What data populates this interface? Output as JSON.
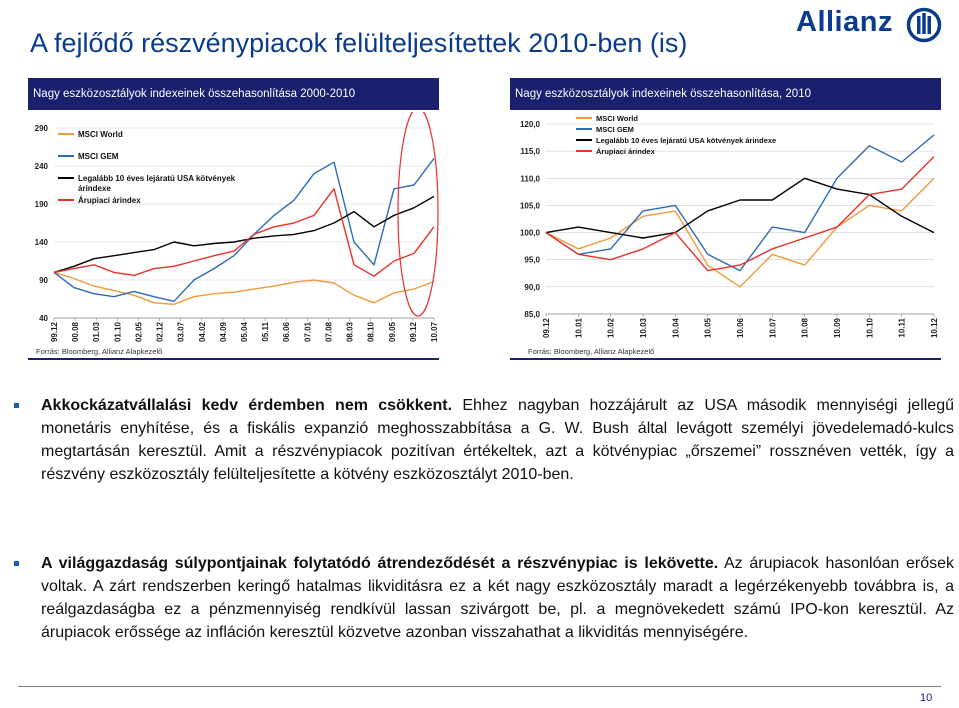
{
  "slide": {
    "title": "A fejlődő részvénypiacok felülteljesítettek 2010-ben (is)",
    "logo_text": "Allianz",
    "page_number": "10"
  },
  "colors": {
    "navy": "#1a1f6e",
    "title_blue": "#0b3b8c",
    "red": "#e8312a",
    "orange": "#f29a3a",
    "blue": "#2e6bb5",
    "black": "#000000"
  },
  "chart_data": [
    {
      "type": "line",
      "panel_title": "Nagy eszközosztályok indexeinek összehasonlítása 2000-2010",
      "source": "Forrás: Bloomberg, Allianz Alapkezelő",
      "y_ticks": [
        "40",
        "90",
        "140",
        "190",
        "240",
        "290"
      ],
      "ylim": [
        40,
        290
      ],
      "x_ticks": [
        "99.12",
        "00.08",
        "01.03",
        "01.10",
        "02.05",
        "02.12",
        "03.07",
        "04.02",
        "04.09",
        "05.04",
        "05.11",
        "06.06",
        "07.01",
        "07.08",
        "08.03",
        "08.10",
        "09.05",
        "09.12",
        "10.07"
      ],
      "grid": true,
      "legend_position": "top-left",
      "series": [
        {
          "name": "MSCI World",
          "color": "#f29a3a",
          "values": [
            100,
            92,
            82,
            76,
            70,
            60,
            58,
            68,
            72,
            74,
            78,
            82,
            87,
            90,
            86,
            70,
            60,
            73,
            78,
            88
          ]
        },
        {
          "name": "MSCI GEM",
          "color": "#2e6bb5",
          "values": [
            100,
            80,
            72,
            68,
            75,
            68,
            62,
            90,
            105,
            122,
            150,
            175,
            195,
            230,
            245,
            140,
            110,
            210,
            215,
            250
          ]
        },
        {
          "name": "Legalább 10 éves lejáratú USA kötvények árindexe",
          "color": "#000000",
          "values": [
            100,
            108,
            118,
            122,
            126,
            130,
            140,
            135,
            138,
            140,
            145,
            148,
            150,
            155,
            165,
            180,
            160,
            175,
            185,
            200
          ]
        },
        {
          "name": "Árupiaci árindex",
          "color": "#e8312a",
          "values": [
            100,
            105,
            110,
            100,
            96,
            105,
            108,
            115,
            122,
            128,
            150,
            160,
            165,
            175,
            210,
            110,
            95,
            115,
            125,
            160
          ]
        }
      ]
    },
    {
      "type": "line",
      "panel_title": "Nagy eszközosztályok indexeinek összehasonlítása, 2010",
      "source": "Forrás: Bloomberg, Allianz Alapkezelő",
      "y_ticks": [
        "85,0",
        "90,0",
        "95,0",
        "100,0",
        "105,0",
        "110,0",
        "115,0",
        "120,0"
      ],
      "ylim": [
        85,
        120
      ],
      "x_ticks": [
        "09.12",
        "10.01",
        "10.02",
        "10.03",
        "10.04",
        "10.05",
        "10.06",
        "10.07",
        "10.08",
        "10.09",
        "10.10",
        "10.11",
        "10.12"
      ],
      "grid": true,
      "legend_position": "top-left",
      "series": [
        {
          "name": "MSCI World",
          "color": "#f29a3a",
          "values": [
            100,
            97,
            99,
            103,
            104,
            94,
            90,
            96,
            94,
            101,
            105,
            104,
            110
          ]
        },
        {
          "name": "MSCI GEM",
          "color": "#2e6bb5",
          "values": [
            100,
            96,
            97,
            104,
            105,
            96,
            93,
            101,
            100,
            110,
            116,
            113,
            118
          ]
        },
        {
          "name": "Legalább 10 éves lejáratú USA kötvények árindexe",
          "color": "#000000",
          "values": [
            100,
            101,
            100,
            99,
            100,
            104,
            106,
            106,
            110,
            108,
            107,
            103,
            100
          ]
        },
        {
          "name": "Árupiaci árindex",
          "color": "#e8312a",
          "values": [
            100,
            96,
            95,
            97,
            100,
            93,
            94,
            97,
            99,
            101,
            107,
            108,
            114
          ]
        }
      ]
    }
  ],
  "bullets": [
    {
      "bold": "Akkockázatvállalási kedv érdemben nem csökkent.",
      "text": " Ehhez nagyban hozzájárult az USA második mennyiségi jellegű monetáris enyhítése, és a fiskális expanzió meghosszabbítása a G. W. Bush által levágott személyi jövedelemadó-kulcs megtartásán keresztül. Amit a részvénypiacok pozitívan értékeltek, azt a kötvénypiac „őrszemei” rossznéven vették, így a részvény eszközosztály felülteljesítette a kötvény eszközosztályt 2010-ben."
    },
    {
      "bold": "A világgazdaság súlypontjainak folytatódó átrendeződését a részvénypiac is lekövette.",
      "text": " Az árupiacok hasonlóan erősek voltak. A zárt rendszerben keringő hatalmas likviditásra ez a két nagy eszközosztály maradt a legérzékenyebb továbbra is, a reálgazdaságba ez a pénzmennyiség rendkívül lassan szivárgott be, pl. a megnövekedett számú IPO-kon keresztül. Az árupiacok erőssége az infláción keresztül közvetve azonban visszahathat a likviditás mennyiségére."
    }
  ]
}
